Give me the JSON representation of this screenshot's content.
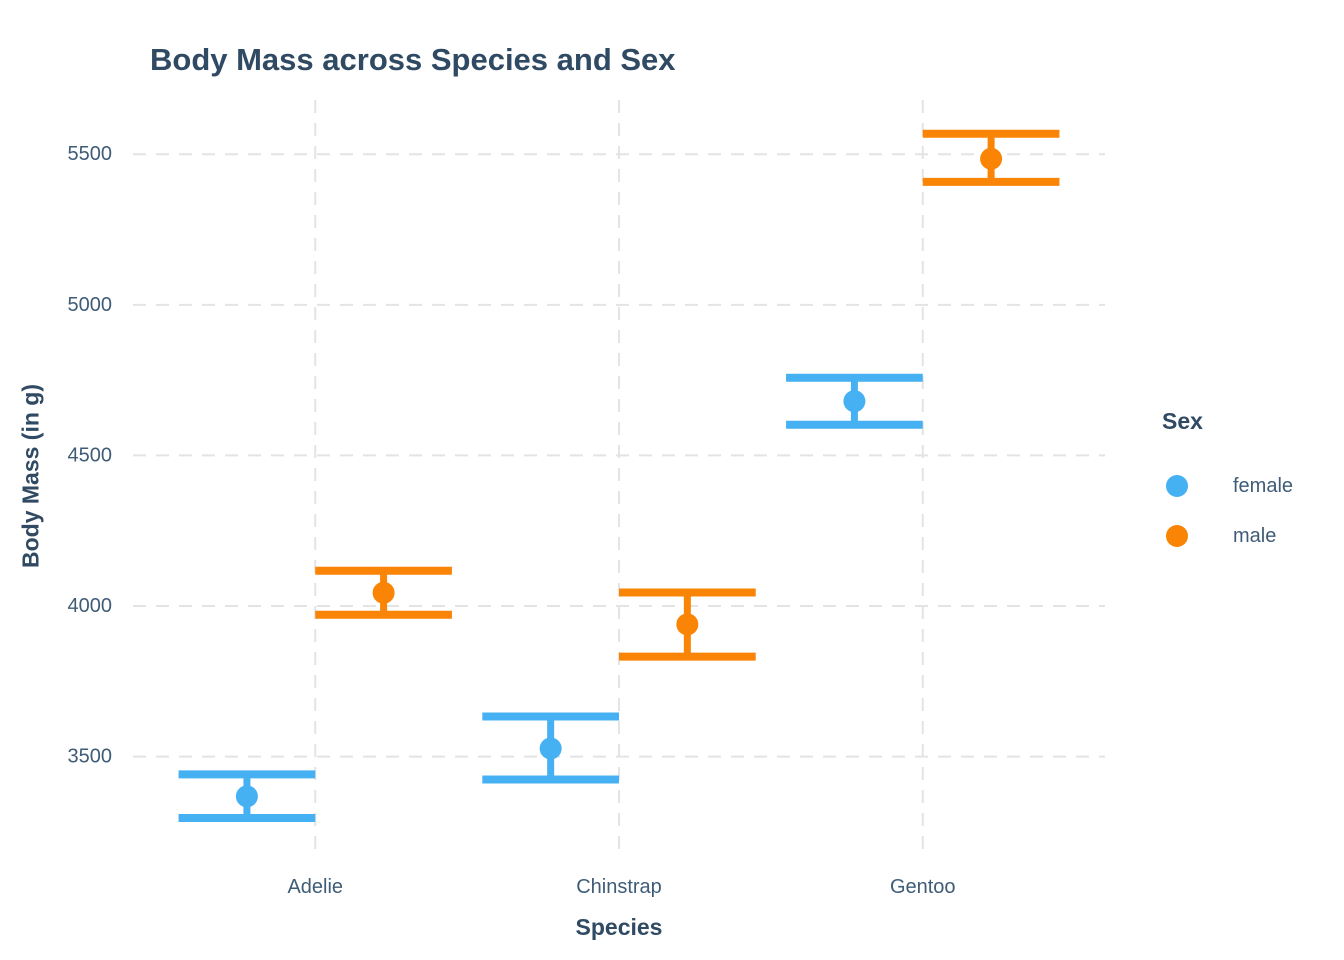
{
  "chart_data": {
    "type": "pointrange",
    "title": "Body Mass across Species and Sex",
    "xlabel": "Species",
    "ylabel": "Body Mass (in g)",
    "categories": [
      "Adelie",
      "Chinstrap",
      "Gentoo"
    ],
    "series": [
      {
        "name": "female",
        "color": "#45B1F2",
        "points": [
          {
            "category": "Adelie",
            "mean": 3368,
            "ymin": 3296,
            "ymax": 3441
          },
          {
            "category": "Chinstrap",
            "mean": 3527,
            "ymin": 3424,
            "ymax": 3633
          },
          {
            "category": "Gentoo",
            "mean": 4680,
            "ymin": 4602,
            "ymax": 4758
          }
        ]
      },
      {
        "name": "male",
        "color": "#FA8405",
        "points": [
          {
            "category": "Adelie",
            "mean": 4044,
            "ymin": 3971,
            "ymax": 4117
          },
          {
            "category": "Chinstrap",
            "mean": 3939,
            "ymin": 3832,
            "ymax": 4045
          },
          {
            "category": "Gentoo",
            "mean": 5485,
            "ymin": 5408,
            "ymax": 5568
          }
        ]
      }
    ],
    "yticks": [
      3500,
      4000,
      4500,
      5000,
      5500
    ],
    "ylim": [
      3180,
      5680
    ],
    "grid": {
      "visible": true,
      "style": "dashed",
      "color": "#E4E4E4"
    },
    "legend": {
      "title": "Sex",
      "position": "right"
    }
  },
  "style": {
    "background": "#FFFFFF",
    "title_color": "#2F4A62",
    "axis_title_color": "#2F4A62",
    "tick_color": "#3F5C77",
    "legend_label_color": "#3F5C77",
    "grid_color": "#E4E4E4"
  }
}
